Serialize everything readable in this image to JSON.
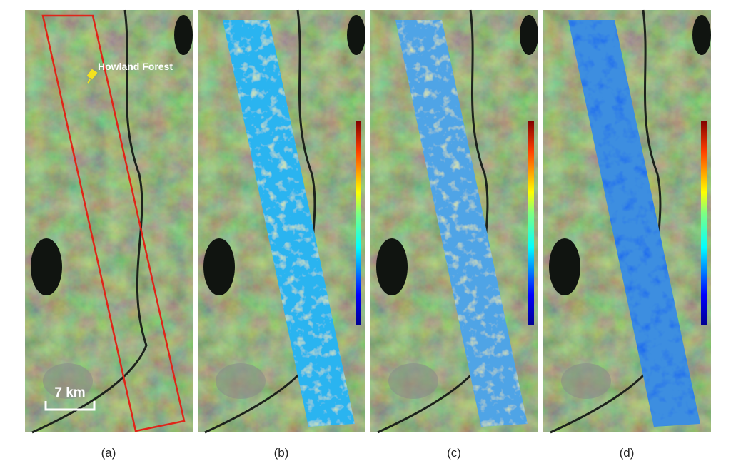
{
  "panels": [
    {
      "label": "(a)",
      "annotation": "Howland Forest",
      "scale_bar": "7 km"
    },
    {
      "label": "(b)"
    },
    {
      "label": "(c)"
    },
    {
      "label": "(d)"
    }
  ]
}
